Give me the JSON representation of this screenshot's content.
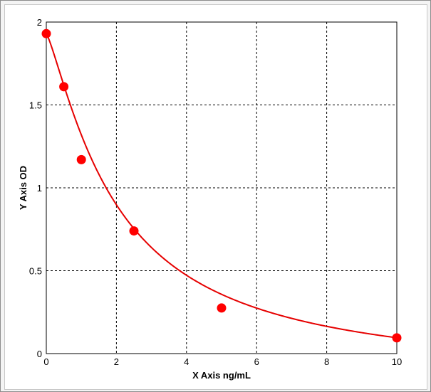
{
  "chart_data": {
    "type": "scatter",
    "xlabel": "X Axis ng/mL",
    "ylabel": "Y Axis OD",
    "xlim": [
      0,
      10
    ],
    "ylim": [
      0,
      2
    ],
    "x_ticks": [
      "0",
      "2",
      "4",
      "6",
      "8",
      "10"
    ],
    "y_ticks": [
      "0",
      "0.5",
      "1",
      "1.5",
      "2"
    ],
    "grid": true,
    "series": [
      {
        "points": [
          {
            "x": 0,
            "y": 1.93
          },
          {
            "x": 0.5,
            "y": 1.61
          },
          {
            "x": 1,
            "y": 1.17
          },
          {
            "x": 2.5,
            "y": 0.74
          },
          {
            "x": 5,
            "y": 0.275
          },
          {
            "x": 10,
            "y": 0.095
          }
        ],
        "color": "#ff0000"
      }
    ],
    "fit_curve": {
      "type": "4-parameter logistic",
      "color": "#e60000",
      "params": {
        "a": 1.93,
        "b": 1.24,
        "c": 2.04,
        "d": -0.16
      }
    }
  }
}
